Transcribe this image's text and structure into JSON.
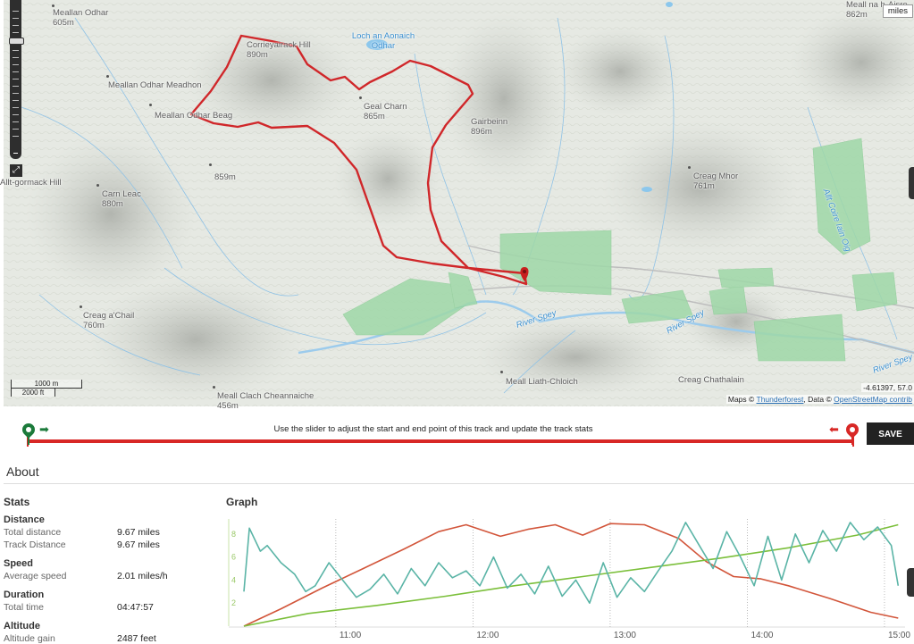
{
  "map": {
    "units_label": "miles",
    "scale": {
      "metric": "1000 m",
      "imperial": "2000 ft"
    },
    "coords": "-4.61397, 57.0",
    "attribution": {
      "prefix": "Maps ©",
      "tiles_link": "Thunderforest",
      "mid": ", Data ©",
      "data_link": "OpenStreetMap contrib"
    },
    "places": [
      {
        "name": "Meallan Odhar",
        "elev": "605m"
      },
      {
        "name": "Meallan Odhar Meadhon",
        "elev": ""
      },
      {
        "name": "Meallan Odhar Beag",
        "elev": ""
      },
      {
        "name": "Corrieyairack Hill",
        "elev": "890m"
      },
      {
        "name": "Loch an Aonaich Odhar",
        "elev": ""
      },
      {
        "name": "Geal Charn",
        "elev": "865m"
      },
      {
        "name": "Gairbeinn",
        "elev": "896m"
      },
      {
        "name": "Creag Mhor",
        "elev": "761m"
      },
      {
        "name": "Meall na h-Aisre",
        "elev": "862m"
      },
      {
        "name": "Carn Leac",
        "elev": "880m"
      },
      {
        "name": "859m",
        "elev": ""
      },
      {
        "name": "Creag a'Chail",
        "elev": "760m"
      },
      {
        "name": "Meall Clach Cheannaiche",
        "elev": "456m"
      },
      {
        "name": "Meall Liath-Chloich",
        "elev": ""
      },
      {
        "name": "Creag Chathalain",
        "elev": ""
      },
      {
        "name": "Allt Coire Iain Oig",
        "elev": ""
      },
      {
        "name": "River Spey",
        "elev": ""
      },
      {
        "name": "Allt-gormack Hill",
        "elev": ""
      }
    ],
    "colors": {
      "track": "#d0272a",
      "forest": "#9fd8a8",
      "water": "#8cc7ec",
      "land": "#e6e9e3"
    }
  },
  "slider": {
    "hint": "Use the slider to adjust the start and end point of this track and update the track stats",
    "save_label": "SAVE"
  },
  "about": {
    "title": "About",
    "stats_title": "Stats",
    "graph_title": "Graph",
    "distance": {
      "heading": "Distance",
      "total_label": "Total distance",
      "total_value": "9.67 miles",
      "track_label": "Track Distance",
      "track_value": "9.67 miles"
    },
    "speed": {
      "heading": "Speed",
      "avg_label": "Average speed",
      "avg_value": "2.01 miles/h"
    },
    "duration": {
      "heading": "Duration",
      "total_label": "Total time",
      "total_value": "04:47:57"
    },
    "altitude": {
      "heading": "Altitude",
      "gain_label": "Altitude gain",
      "gain_value": "2487 feet"
    }
  },
  "chart_data": {
    "type": "line",
    "title": "",
    "xlabel": "",
    "ylabel": "",
    "x_ticks": [
      "11:00",
      "12:00",
      "13:00",
      "14:00",
      "15:00"
    ],
    "y_ticks": [
      2,
      4,
      6,
      8
    ],
    "series": [
      {
        "color": "#d2553a",
        "x": [
          10.33,
          10.6,
          10.9,
          11.2,
          11.5,
          11.75,
          11.95,
          12.2,
          12.4,
          12.6,
          12.8,
          13.0,
          13.25,
          13.5,
          13.7,
          13.9,
          14.1,
          14.3,
          14.6,
          14.9,
          15.1
        ],
        "y": [
          0,
          1.5,
          3.3,
          5.0,
          6.7,
          8.2,
          8.8,
          7.8,
          8.4,
          8.8,
          7.9,
          8.9,
          8.8,
          7.6,
          5.6,
          4.3,
          4.1,
          3.5,
          2.4,
          1.2,
          0.7
        ]
      },
      {
        "color": "#7bbf3a",
        "x": [
          10.33,
          10.8,
          11.3,
          11.8,
          12.3,
          12.8,
          13.3,
          13.8,
          14.3,
          14.8,
          15.1
        ],
        "y": [
          0,
          1.1,
          1.8,
          2.6,
          3.5,
          4.3,
          5.1,
          5.9,
          6.8,
          7.9,
          8.8
        ]
      },
      {
        "color": "#5ab4a6",
        "x": [
          10.33,
          10.37,
          10.45,
          10.5,
          10.6,
          10.7,
          10.78,
          10.85,
          10.95,
          11.05,
          11.15,
          11.25,
          11.35,
          11.45,
          11.55,
          11.65,
          11.75,
          11.85,
          11.95,
          12.05,
          12.15,
          12.25,
          12.35,
          12.45,
          12.55,
          12.65,
          12.75,
          12.85,
          12.95,
          13.05,
          13.15,
          13.25,
          13.35,
          13.45,
          13.55,
          13.65,
          13.75,
          13.85,
          13.95,
          14.05,
          14.15,
          14.25,
          14.35,
          14.45,
          14.55,
          14.65,
          14.75,
          14.85,
          14.95,
          15.05,
          15.1
        ],
        "y": [
          3.0,
          8.5,
          6.5,
          7.0,
          5.5,
          4.5,
          3.0,
          3.5,
          5.5,
          4.0,
          2.5,
          3.2,
          4.5,
          2.8,
          5.0,
          3.5,
          5.5,
          4.2,
          4.8,
          3.5,
          6.0,
          3.3,
          4.5,
          2.8,
          5.2,
          2.6,
          4.0,
          2.0,
          5.5,
          2.5,
          4.2,
          3.0,
          4.8,
          6.5,
          9.0,
          7.0,
          5.0,
          8.2,
          6.0,
          3.5,
          7.8,
          4.0,
          8.0,
          5.5,
          8.3,
          6.5,
          9.0,
          7.5,
          8.6,
          7.0,
          3.5
        ]
      }
    ]
  }
}
